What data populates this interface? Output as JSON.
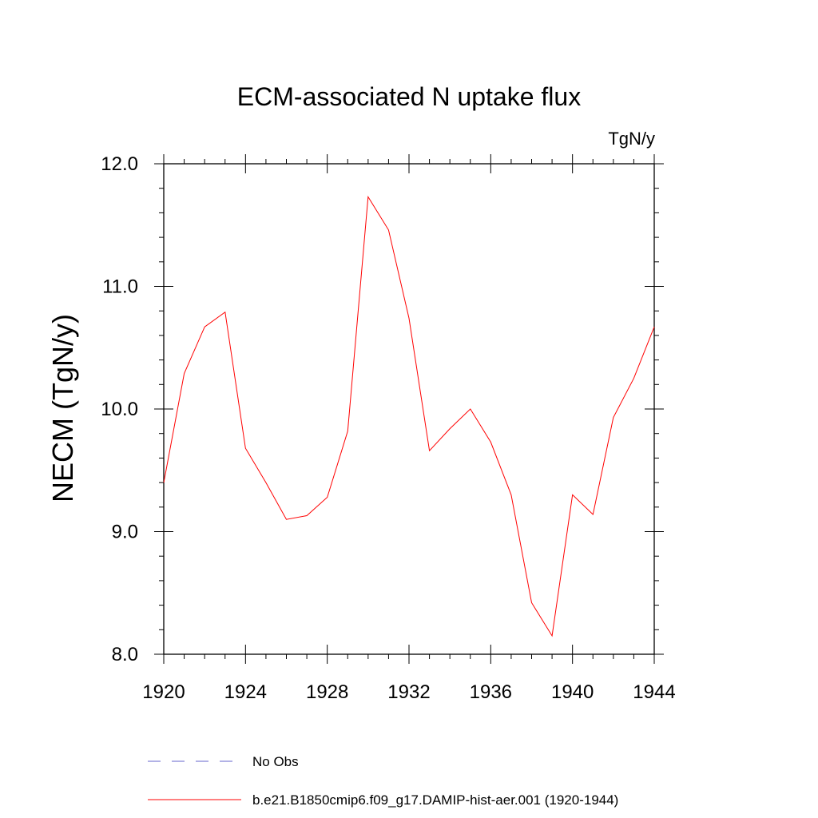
{
  "chart_data": {
    "type": "line",
    "title": "ECM-associated N uptake flux",
    "units_label": "TgN/y",
    "ylabel": "NECM  (TgN/y)",
    "xlabel": "",
    "xlim": [
      1920,
      1944
    ],
    "ylim": [
      8.0,
      12.0
    ],
    "x_ticks": [
      1920,
      1924,
      1928,
      1932,
      1936,
      1940,
      1944
    ],
    "x_tick_labels": [
      "1920",
      "1924",
      "1928",
      "1932",
      "1936",
      "1940",
      "1944"
    ],
    "y_ticks": [
      8.0,
      9.0,
      10.0,
      11.0,
      12.0
    ],
    "y_tick_labels": [
      "8.0",
      "9.0",
      "10.0",
      "11.0",
      "12.0"
    ],
    "grid": false,
    "legend_position": "bottom",
    "series": [
      {
        "name": "b.e21.B1850cmip6.f09_g17.DAMIP-hist-aer.001 (1920-1944)",
        "color": "#ff0000",
        "style": "solid",
        "x": [
          1920,
          1921,
          1922,
          1923,
          1924,
          1925,
          1926,
          1927,
          1928,
          1929,
          1930,
          1931,
          1932,
          1933,
          1934,
          1935,
          1936,
          1937,
          1938,
          1939,
          1940,
          1941,
          1942,
          1943,
          1944
        ],
        "y": [
          9.4,
          10.29,
          10.67,
          10.79,
          9.68,
          9.4,
          9.1,
          9.13,
          9.28,
          9.82,
          11.73,
          11.46,
          10.74,
          9.66,
          9.84,
          10.0,
          9.73,
          9.3,
          8.42,
          8.15,
          9.3,
          9.14,
          9.93,
          10.25,
          10.67
        ]
      }
    ],
    "legend": [
      {
        "label": "No Obs",
        "color": "#6666cc",
        "style": "dashed"
      },
      {
        "label": "b.e21.B1850cmip6.f09_g17.DAMIP-hist-aer.001 (1920-1944)",
        "color": "#ff0000",
        "style": "solid"
      }
    ]
  }
}
